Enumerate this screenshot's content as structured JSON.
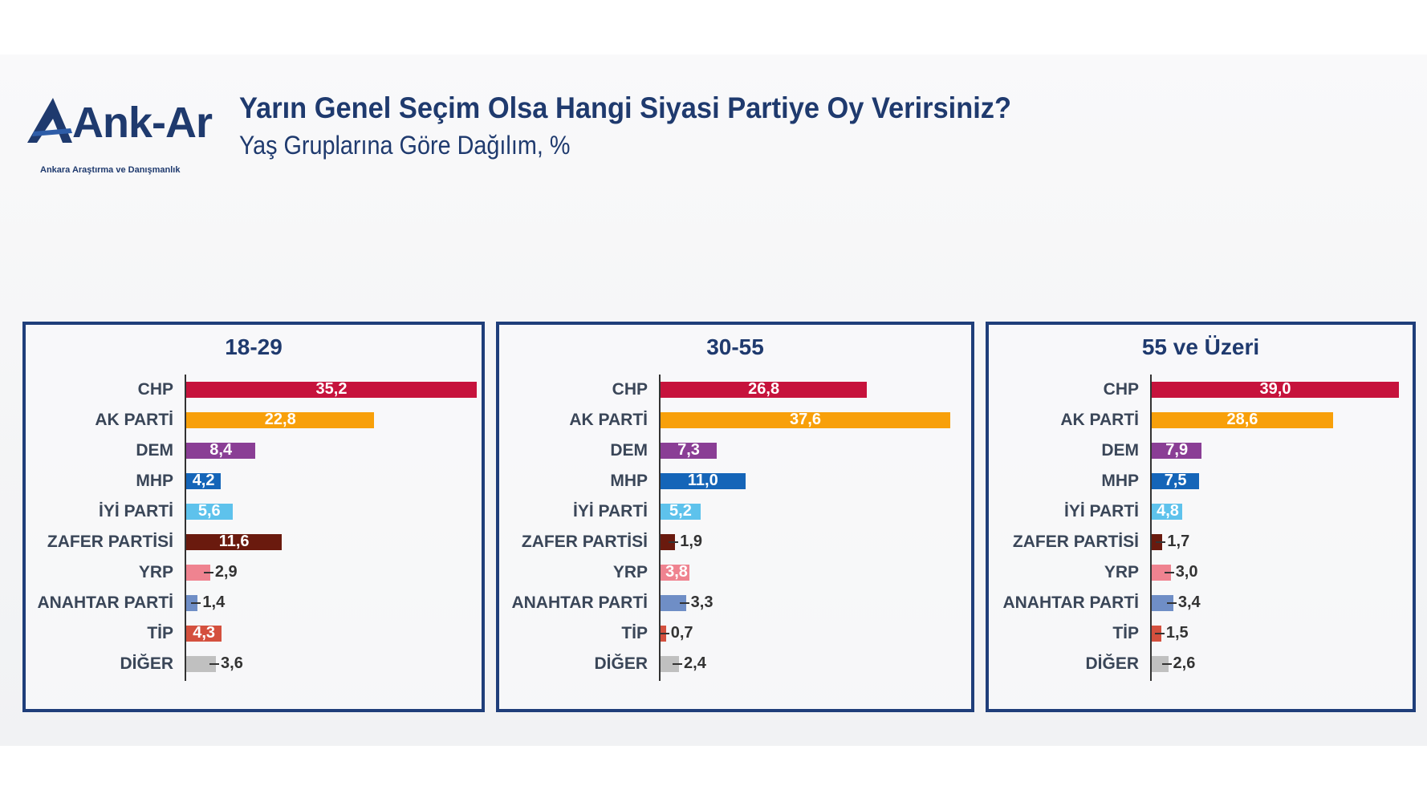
{
  "logo": {
    "text": "Ank-Ar",
    "subtext": "Ankara Araştırma ve Danışmanlık"
  },
  "header": {
    "title": "Yarın Genel Seçim Olsa Hangi Siyasi Partiye Oy Verirsiniz?",
    "subtitle": "Yaş Gruplarına Göre Dağılım, %"
  },
  "chart_data": [
    {
      "type": "bar",
      "orientation": "horizontal",
      "title": "18-29",
      "categories": [
        "CHP",
        "AK PARTİ",
        "DEM",
        "MHP",
        "İYİ PARTİ",
        "ZAFER PARTİSİ",
        "YRP",
        "ANAHTAR PARTİ",
        "TİP",
        "DİĞER"
      ],
      "values": [
        35.2,
        22.8,
        8.4,
        4.2,
        5.6,
        11.6,
        2.9,
        1.4,
        4.3,
        3.6
      ],
      "labels": [
        "35,2",
        "22,8",
        "8,4",
        "4,2",
        "5,6",
        "11,6",
        "2,9",
        "1,4",
        "4,3",
        "3,6"
      ],
      "label_inside": [
        true,
        true,
        true,
        true,
        true,
        true,
        false,
        false,
        true,
        false
      ]
    },
    {
      "type": "bar",
      "orientation": "horizontal",
      "title": "30-55",
      "categories": [
        "CHP",
        "AK PARTİ",
        "DEM",
        "MHP",
        "İYİ PARTİ",
        "ZAFER PARTİSİ",
        "YRP",
        "ANAHTAR PARTİ",
        "TİP",
        "DİĞER"
      ],
      "values": [
        26.8,
        37.6,
        7.3,
        11.0,
        5.2,
        1.9,
        3.8,
        3.3,
        0.7,
        2.4
      ],
      "labels": [
        "26,8",
        "37,6",
        "7,3",
        "11,0",
        "5,2",
        "1,9",
        "3,8",
        "3,3",
        "0,7",
        "2,4"
      ],
      "label_inside": [
        true,
        true,
        true,
        true,
        true,
        false,
        true,
        false,
        false,
        false
      ]
    },
    {
      "type": "bar",
      "orientation": "horizontal",
      "title": "55 ve Üzeri",
      "categories": [
        "CHP",
        "AK PARTİ",
        "DEM",
        "MHP",
        "İYİ PARTİ",
        "ZAFER PARTİSİ",
        "YRP",
        "ANAHTAR PARTİ",
        "TİP",
        "DİĞER"
      ],
      "values": [
        39.0,
        28.6,
        7.9,
        7.5,
        4.8,
        1.7,
        3.0,
        3.4,
        1.5,
        2.6
      ],
      "labels": [
        "39,0",
        "28,6",
        "7,9",
        "7,5",
        "4,8",
        "1,7",
        "3,0",
        "3,4",
        "1,5",
        "2,6"
      ],
      "label_inside": [
        true,
        true,
        true,
        true,
        true,
        false,
        false,
        false,
        false,
        false
      ]
    }
  ],
  "colors": {
    "CHP": "#c6133c",
    "AK PARTİ": "#f8a00a",
    "DEM": "#8a3e95",
    "MHP": "#1565b8",
    "İYİ PARTİ": "#5ec2ec",
    "ZAFER PARTİSİ": "#6a1a0e",
    "YRP": "#ef8390",
    "ANAHTAR PARTİ": "#6f8ec6",
    "TİP": "#d4503e",
    "DİĞER": "#c0c0c0",
    "title": "#1f3a6e",
    "frame": "#1f3e7a"
  }
}
